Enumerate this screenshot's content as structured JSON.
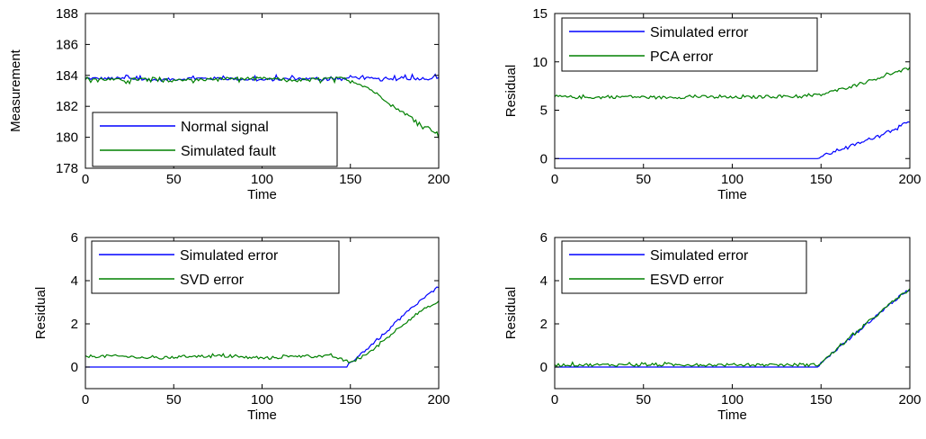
{
  "chart_data": [
    {
      "type": "line",
      "xlabel": "Time",
      "ylabel": "Measurement",
      "xlim": [
        0,
        200
      ],
      "ylim": [
        178,
        188
      ],
      "xticks": [
        0,
        50,
        100,
        150,
        200
      ],
      "yticks": [
        178,
        180,
        182,
        184,
        186,
        188
      ],
      "legend_position": "bottom-left",
      "grid": false,
      "series": [
        {
          "name": "Normal signal",
          "color": "#0000ff",
          "x": [
            0,
            20,
            40,
            60,
            80,
            100,
            120,
            140,
            148,
            150,
            160,
            170,
            180,
            190,
            200
          ],
          "y": [
            183.8,
            183.8,
            183.7,
            183.8,
            183.8,
            183.7,
            183.8,
            183.7,
            183.8,
            183.9,
            183.8,
            183.7,
            183.8,
            183.8,
            183.8
          ]
        },
        {
          "name": "Simulated fault",
          "color": "#008000",
          "x": [
            0,
            20,
            40,
            60,
            80,
            100,
            120,
            140,
            148,
            160,
            170,
            180,
            190,
            200
          ],
          "y": [
            183.8,
            183.7,
            183.8,
            183.7,
            183.8,
            183.8,
            183.7,
            183.8,
            183.8,
            183.2,
            182.4,
            181.6,
            180.9,
            180.2
          ]
        }
      ]
    },
    {
      "type": "line",
      "xlabel": "Time",
      "ylabel": "Residual",
      "xlim": [
        0,
        200
      ],
      "ylim": [
        -1,
        15
      ],
      "xticks": [
        0,
        50,
        100,
        150,
        200
      ],
      "yticks": [
        0,
        5,
        10,
        15
      ],
      "legend_position": "top-left",
      "grid": false,
      "series": [
        {
          "name": "Simulated error",
          "color": "#0000ff",
          "x": [
            0,
            148,
            150,
            160,
            170,
            180,
            190,
            200
          ],
          "y": [
            0,
            0,
            0.2,
            0.9,
            1.5,
            2.2,
            3.0,
            3.8
          ]
        },
        {
          "name": "PCA error",
          "color": "#008000",
          "x": [
            0,
            20,
            40,
            60,
            80,
            100,
            120,
            140,
            150,
            160,
            170,
            180,
            190,
            200
          ],
          "y": [
            6.4,
            6.3,
            6.4,
            6.3,
            6.4,
            6.3,
            6.4,
            6.4,
            6.6,
            7.1,
            7.6,
            8.2,
            8.8,
            9.3
          ]
        }
      ]
    },
    {
      "type": "line",
      "xlabel": "Time",
      "ylabel": "Residual",
      "xlim": [
        0,
        200
      ],
      "ylim": [
        -1,
        6
      ],
      "xticks": [
        0,
        50,
        100,
        150,
        200
      ],
      "yticks": [
        0,
        2,
        4,
        6
      ],
      "legend_position": "top-left",
      "grid": false,
      "series": [
        {
          "name": "Simulated error",
          "color": "#0000ff",
          "x": [
            0,
            148,
            150,
            160,
            170,
            180,
            190,
            200
          ],
          "y": [
            0,
            0,
            0.2,
            0.9,
            1.6,
            2.4,
            3.1,
            3.7
          ]
        },
        {
          "name": "SVD error",
          "color": "#008000",
          "x": [
            0,
            20,
            40,
            60,
            80,
            100,
            120,
            140,
            150,
            160,
            170,
            180,
            190,
            200
          ],
          "y": [
            0.5,
            0.5,
            0.4,
            0.5,
            0.5,
            0.4,
            0.5,
            0.5,
            0.2,
            0.6,
            1.3,
            2.0,
            2.6,
            3.0
          ]
        }
      ]
    },
    {
      "type": "line",
      "xlabel": "Time",
      "ylabel": "Residual",
      "xlim": [
        0,
        200
      ],
      "ylim": [
        -1,
        6
      ],
      "xticks": [
        0,
        50,
        100,
        150,
        200
      ],
      "yticks": [
        0,
        2,
        4,
        6
      ],
      "legend_position": "top-left",
      "grid": false,
      "series": [
        {
          "name": "Simulated error",
          "color": "#0000ff",
          "x": [
            0,
            148,
            150,
            160,
            170,
            180,
            190,
            200
          ],
          "y": [
            0,
            0,
            0.2,
            0.9,
            1.6,
            2.3,
            3.0,
            3.6
          ]
        },
        {
          "name": "ESVD error",
          "color": "#008000",
          "x": [
            0,
            20,
            40,
            60,
            80,
            100,
            120,
            140,
            148,
            150,
            160,
            170,
            180,
            190,
            200
          ],
          "y": [
            0.1,
            0.1,
            0.1,
            0.1,
            0.1,
            0.1,
            0.1,
            0.1,
            0.1,
            0.2,
            0.9,
            1.6,
            2.3,
            3.0,
            3.6
          ]
        }
      ]
    }
  ]
}
